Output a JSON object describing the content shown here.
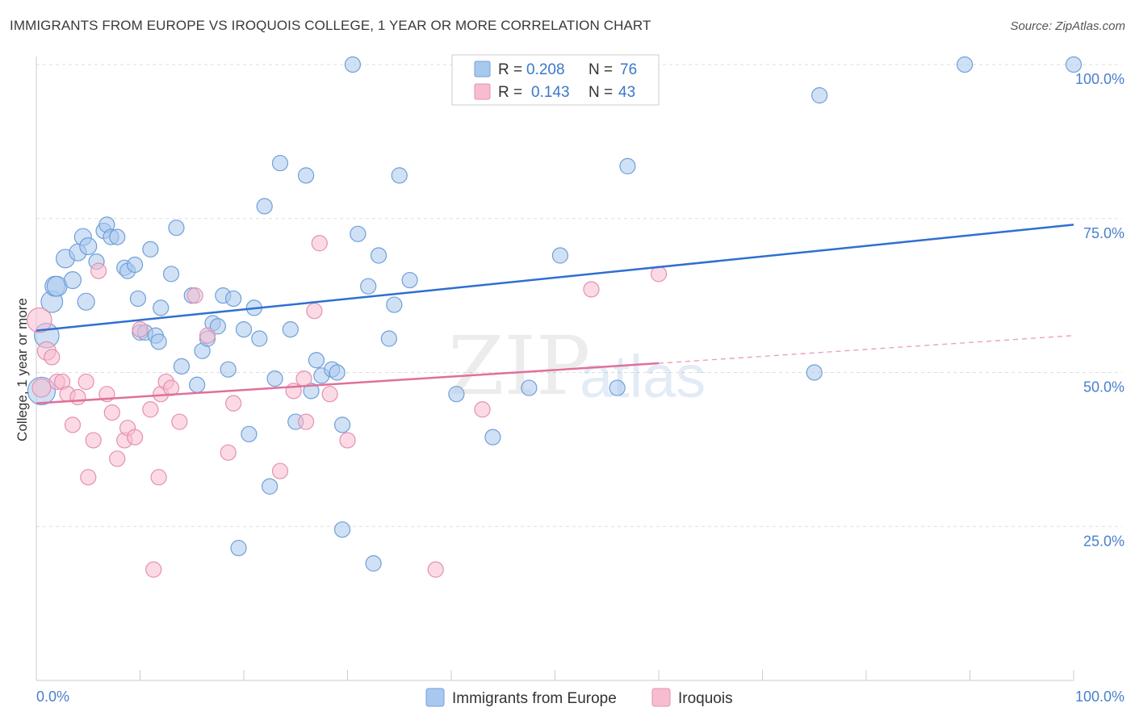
{
  "title": "IMMIGRANTS FROM EUROPE VS IROQUOIS COLLEGE, 1 YEAR OR MORE CORRELATION CHART",
  "source": "Source: ZipAtlas.com",
  "colors": {
    "blue_fill": "#a9c8ef",
    "blue_stroke": "#6f9fd8",
    "blue_line": "#2f6fd0",
    "pink_fill": "#f7bcd0",
    "pink_stroke": "#e590ad",
    "pink_line": "#e0709a",
    "grid": "#dddddd",
    "tick_text": "#4a7fcc"
  },
  "legend": {
    "r_label": "R =",
    "n_label": "N =",
    "rows": [
      {
        "series": "Immigrants from Europe",
        "r": "0.208",
        "n": "76"
      },
      {
        "series": "Iroquois",
        "r": "0.143",
        "n": "43"
      }
    ]
  },
  "watermark": {
    "part1": "ZIP",
    "part2": "atlas"
  },
  "chart_data": {
    "type": "scatter",
    "title": "IMMIGRANTS FROM EUROPE VS IROQUOIS COLLEGE, 1 YEAR OR MORE CORRELATION CHART",
    "xlabel": "",
    "ylabel": "College, 1 year or more",
    "xlim": [
      0,
      100
    ],
    "ylim": [
      0,
      100
    ],
    "x_tick_labels": {
      "left": "0.0%",
      "right": "100.0%"
    },
    "y_ticks": [
      {
        "value": 25,
        "label": "25.0%"
      },
      {
        "value": 50,
        "label": "50.0%"
      },
      {
        "value": 75,
        "label": "75.0%"
      },
      {
        "value": 100,
        "label": "100.0%"
      }
    ],
    "series": [
      {
        "name": "Immigrants from Europe",
        "r": 0.208,
        "n": 76,
        "trend": {
          "x0": 0,
          "y0": 56.8,
          "x1": 100,
          "y1": 74.0,
          "style": "solid"
        },
        "points": [
          [
            0.5,
            47,
            18
          ],
          [
            1,
            56,
            16
          ],
          [
            1.5,
            61.5,
            14
          ],
          [
            1.8,
            64,
            13
          ],
          [
            2,
            64,
            13
          ],
          [
            2.8,
            68.5,
            12
          ],
          [
            3.5,
            65,
            11
          ],
          [
            4,
            69.5,
            11
          ],
          [
            4.5,
            72,
            11
          ],
          [
            4.8,
            61.5,
            11
          ],
          [
            5,
            70.5,
            11
          ],
          [
            5.8,
            68,
            10
          ],
          [
            6.5,
            73,
            10
          ],
          [
            6.8,
            74,
            10
          ],
          [
            7.2,
            72,
            10
          ],
          [
            7.8,
            72,
            10
          ],
          [
            8.5,
            67,
            10
          ],
          [
            8.8,
            66.5,
            10
          ],
          [
            9.5,
            67.5,
            10
          ],
          [
            9.8,
            62,
            10
          ],
          [
            10,
            56.5,
            10
          ],
          [
            10.5,
            56.5,
            10
          ],
          [
            11,
            70,
            10
          ],
          [
            11.5,
            56,
            10
          ],
          [
            11.8,
            55,
            10
          ],
          [
            12,
            60.5,
            10
          ],
          [
            13,
            66,
            10
          ],
          [
            13.5,
            73.5,
            10
          ],
          [
            14,
            51,
            10
          ],
          [
            15,
            62.5,
            10
          ],
          [
            15.5,
            48,
            10
          ],
          [
            16,
            53.5,
            10
          ],
          [
            16.5,
            55.5,
            10
          ],
          [
            17,
            58,
            10
          ],
          [
            17.5,
            57.5,
            10
          ],
          [
            18,
            62.5,
            10
          ],
          [
            18.5,
            50.5,
            10
          ],
          [
            19,
            62,
            10
          ],
          [
            19.5,
            21.5,
            10
          ],
          [
            20,
            57,
            10
          ],
          [
            20.5,
            40,
            10
          ],
          [
            21,
            60.5,
            10
          ],
          [
            21.5,
            55.5,
            10
          ],
          [
            22,
            77,
            10
          ],
          [
            22.5,
            31.5,
            10
          ],
          [
            23,
            49,
            10
          ],
          [
            23.5,
            84,
            10
          ],
          [
            24.5,
            57,
            10
          ],
          [
            25,
            42,
            10
          ],
          [
            26,
            82,
            10
          ],
          [
            26.5,
            47,
            10
          ],
          [
            27,
            52,
            10
          ],
          [
            27.5,
            49.5,
            10
          ],
          [
            28.5,
            50.5,
            10
          ],
          [
            29,
            50,
            10
          ],
          [
            29.5,
            41.5,
            10
          ],
          [
            29.5,
            24.5,
            10
          ],
          [
            30.5,
            100,
            10
          ],
          [
            31,
            72.5,
            10
          ],
          [
            32,
            64,
            10
          ],
          [
            32.5,
            19,
            10
          ],
          [
            33,
            69,
            10
          ],
          [
            34,
            55.5,
            10
          ],
          [
            34.5,
            61,
            10
          ],
          [
            35,
            82,
            10
          ],
          [
            36,
            65,
            10
          ],
          [
            40.5,
            46.5,
            10
          ],
          [
            44,
            39.5,
            10
          ],
          [
            47.5,
            47.5,
            10
          ],
          [
            50.5,
            69,
            10
          ],
          [
            56,
            47.5,
            10
          ],
          [
            57,
            83.5,
            10
          ],
          [
            75.5,
            95,
            10
          ],
          [
            75,
            50,
            10
          ],
          [
            89.5,
            100,
            10
          ],
          [
            100,
            100,
            10
          ]
        ]
      },
      {
        "name": "Iroquois",
        "r": 0.143,
        "n": 43,
        "trend": {
          "x0": 0,
          "y0": 45.0,
          "x1": 60,
          "y1": 51.5,
          "style": "solid",
          "dashed_to": {
            "x": 100,
            "y": 56
          }
        },
        "points": [
          [
            0.3,
            58.5,
            16
          ],
          [
            1,
            53.5,
            12
          ],
          [
            1.5,
            52.5,
            10
          ],
          [
            2,
            48.5,
            10
          ],
          [
            2.5,
            48.5,
            10
          ],
          [
            3,
            46.5,
            10
          ],
          [
            3.5,
            41.5,
            10
          ],
          [
            4,
            46,
            10
          ],
          [
            4.8,
            48.5,
            10
          ],
          [
            5,
            33,
            10
          ],
          [
            5.5,
            39,
            10
          ],
          [
            6,
            66.5,
            10
          ],
          [
            6.8,
            46.5,
            10
          ],
          [
            7.3,
            43.5,
            10
          ],
          [
            7.8,
            36,
            10
          ],
          [
            8.5,
            39,
            10
          ],
          [
            8.8,
            41,
            10
          ],
          [
            9.5,
            39.5,
            10
          ],
          [
            10,
            57,
            10
          ],
          [
            11,
            44,
            10
          ],
          [
            11.3,
            18,
            10
          ],
          [
            11.8,
            33,
            10
          ],
          [
            12,
            46.5,
            10
          ],
          [
            12.5,
            48.5,
            10
          ],
          [
            13,
            47.5,
            10
          ],
          [
            13.8,
            42,
            10
          ],
          [
            15.3,
            62.5,
            10
          ],
          [
            16.5,
            56,
            10
          ],
          [
            18.5,
            37,
            10
          ],
          [
            19,
            45,
            10
          ],
          [
            23.5,
            34,
            10
          ],
          [
            24.8,
            47,
            10
          ],
          [
            25.8,
            49,
            10
          ],
          [
            26,
            42,
            10
          ],
          [
            26.8,
            60,
            10
          ],
          [
            27.3,
            71,
            10
          ],
          [
            28.3,
            46.5,
            10
          ],
          [
            30,
            39,
            10
          ],
          [
            38.5,
            18,
            10
          ],
          [
            43,
            44,
            10
          ],
          [
            53.5,
            63.5,
            10
          ],
          [
            60,
            66,
            10
          ],
          [
            0.5,
            47.5,
            12
          ]
        ]
      }
    ]
  },
  "axis": {
    "ylabel": "College, 1 year or more"
  },
  "bottom_legend": [
    {
      "label": "Immigrants from Europe"
    },
    {
      "label": "Iroquois"
    }
  ]
}
